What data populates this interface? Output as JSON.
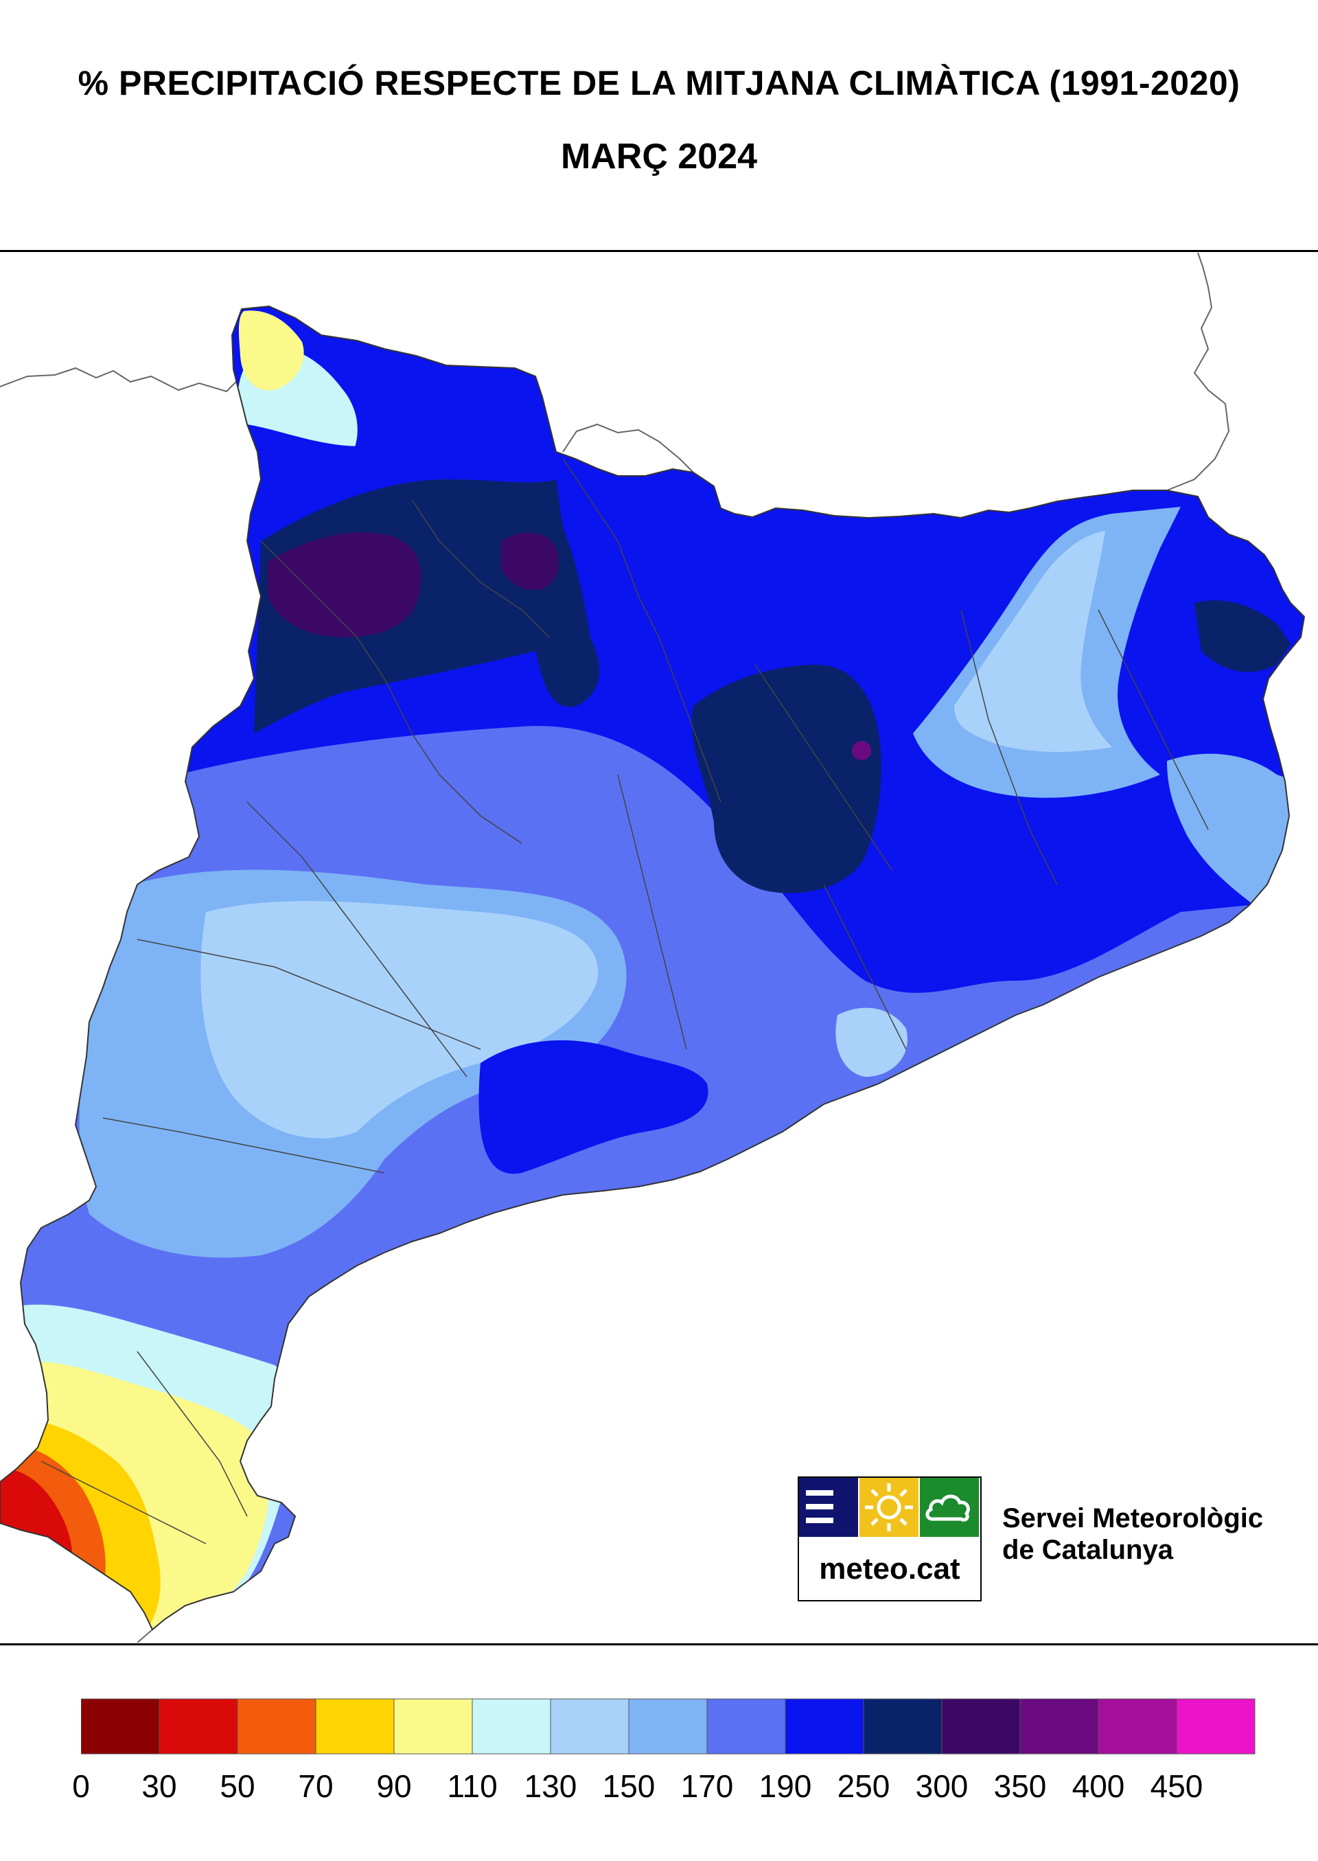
{
  "title": "% PRECIPITACIÓ RESPECTE DE LA MITJANA CLIMÀTICA (1991-2020)",
  "subtitle": "MARÇ 2024",
  "logo": {
    "brand": "meteo.cat",
    "org_line1": "Servei Meteorològic",
    "org_line2": "de Catalunya"
  },
  "legend": {
    "classes": [
      {
        "from": 0,
        "to": 30,
        "color": "#8b0000"
      },
      {
        "from": 30,
        "to": 50,
        "color": "#db0a0a"
      },
      {
        "from": 50,
        "to": 70,
        "color": "#f25c0c"
      },
      {
        "from": 70,
        "to": 90,
        "color": "#ffd400"
      },
      {
        "from": 90,
        "to": 110,
        "color": "#fbf98a"
      },
      {
        "from": 110,
        "to": 130,
        "color": "#c9f6f8"
      },
      {
        "from": 130,
        "to": 150,
        "color": "#a9d2fa"
      },
      {
        "from": 150,
        "to": 170,
        "color": "#7eb4f6"
      },
      {
        "from": 170,
        "to": 190,
        "color": "#5b71f3"
      },
      {
        "from": 190,
        "to": 250,
        "color": "#0a14ef"
      },
      {
        "from": 250,
        "to": 300,
        "color": "#0a226a"
      },
      {
        "from": 300,
        "to": 350,
        "color": "#3c0866"
      },
      {
        "from": 350,
        "to": 400,
        "color": "#6b0a80"
      },
      {
        "from": 400,
        "to": 450,
        "color": "#a30f9a"
      },
      {
        "from": 450,
        "to": null,
        "color": "#ec14c8"
      }
    ],
    "tick_labels": [
      "0",
      "30",
      "50",
      "70",
      "90",
      "110",
      "130",
      "150",
      "170",
      "190",
      "250",
      "300",
      "350",
      "400",
      "450"
    ]
  },
  "colors": {
    "neighbor_outline": "#666666",
    "comarca_border": "#444444"
  }
}
